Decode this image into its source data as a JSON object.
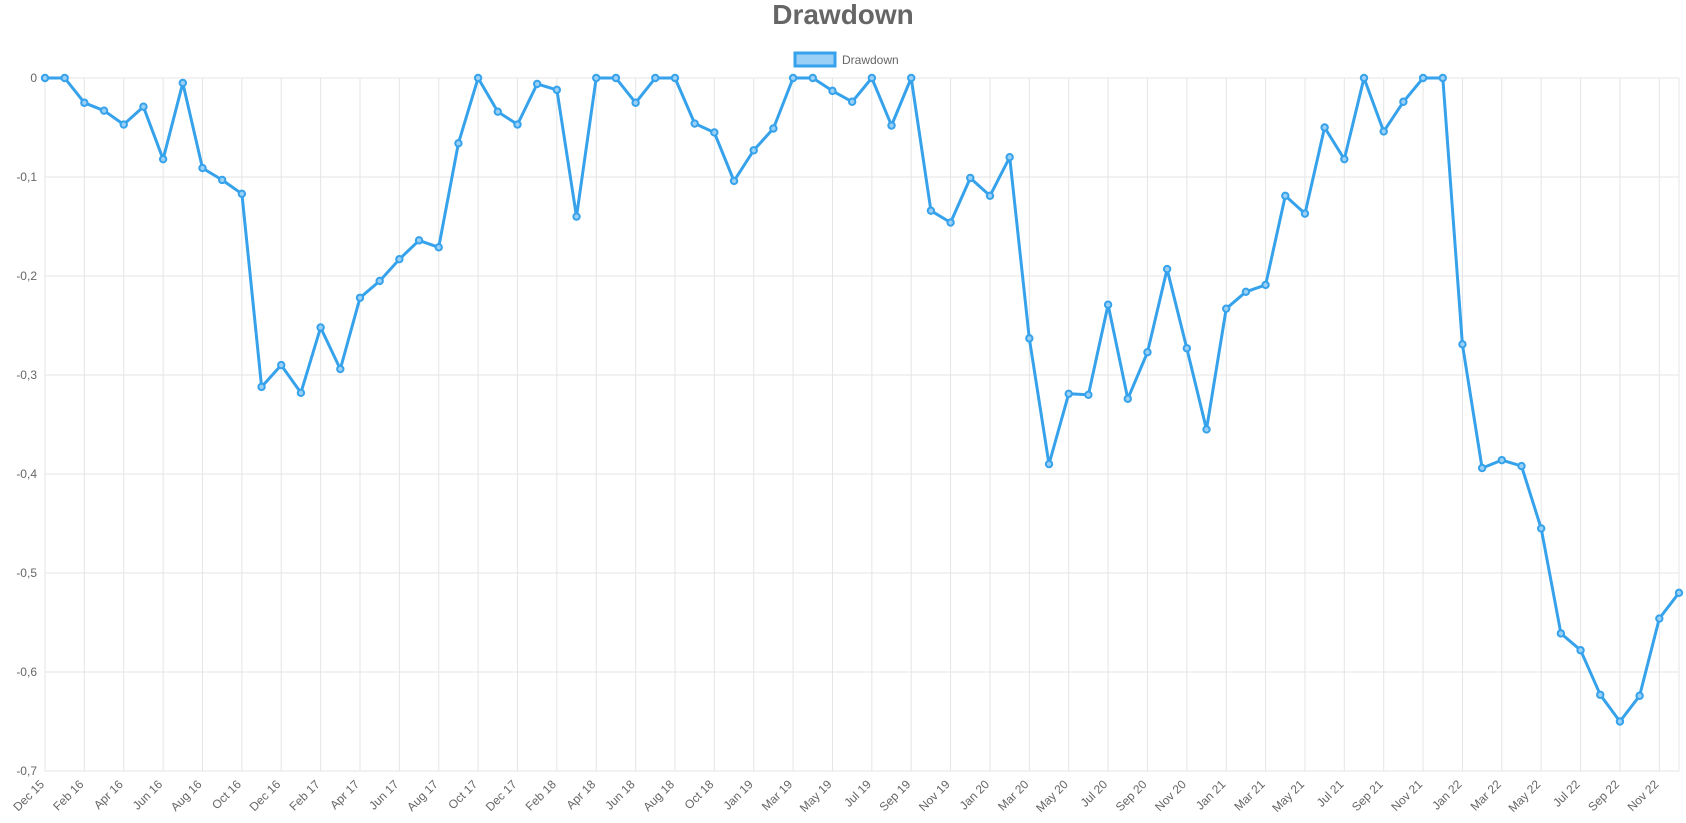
{
  "chart_data": {
    "type": "line",
    "title": "Drawdown",
    "legend": {
      "position": "top",
      "entries": [
        "Drawdown"
      ]
    },
    "colors": {
      "line": "#36a2eb",
      "fill": "#9ad0f5",
      "grid": "#e5e5e5",
      "text": "#666666"
    },
    "grid": true,
    "ylim": [
      -0.7,
      0
    ],
    "y_ticks": [
      "0",
      "-0,1",
      "-0,2",
      "-0,3",
      "-0,4",
      "-0,5",
      "-0,6",
      "-0,7"
    ],
    "x_tick_labels": [
      "Dec 15",
      "Feb 16",
      "Apr 16",
      "Jun 16",
      "Aug 16",
      "Oct 16",
      "Dec 16",
      "Feb 17",
      "Apr 17",
      "Jun 17",
      "Aug 17",
      "Oct 17",
      "Dec 17",
      "Feb 18",
      "Apr 18",
      "Jun 18",
      "Aug 18",
      "Oct 18",
      "Jan 19",
      "Mar 19",
      "May 19",
      "Jul 19",
      "Sep 19",
      "Nov 19",
      "Jan 20",
      "Mar 20",
      "May 20",
      "Jul 20",
      "Sep 20",
      "Nov 20",
      "Jan 21",
      "Mar 21",
      "May 21",
      "Jul 21",
      "Sep 21",
      "Nov 21",
      "Jan 22",
      "Mar 22",
      "May 22",
      "Jul 22",
      "Sep 22",
      "Nov 22"
    ],
    "series": [
      {
        "name": "Drawdown",
        "values": [
          0,
          0,
          -0.025,
          -0.033,
          -0.047,
          -0.029,
          -0.082,
          -0.005,
          -0.091,
          -0.103,
          -0.117,
          -0.312,
          -0.29,
          -0.318,
          -0.252,
          -0.294,
          -0.222,
          -0.205,
          -0.183,
          -0.164,
          -0.171,
          -0.066,
          0,
          -0.034,
          -0.047,
          -0.006,
          -0.012,
          -0.14,
          0,
          0,
          -0.025,
          0,
          0,
          -0.046,
          -0.055,
          -0.104,
          -0.073,
          -0.051,
          0,
          0,
          -0.013,
          -0.024,
          0,
          -0.048,
          0,
          -0.134,
          -0.146,
          -0.101,
          -0.119,
          -0.08,
          -0.263,
          -0.39,
          -0.319,
          -0.32,
          -0.229,
          -0.324,
          -0.277,
          -0.193,
          -0.273,
          -0.355,
          -0.233,
          -0.216,
          -0.209,
          -0.119,
          -0.137,
          -0.05,
          -0.082,
          0,
          -0.054,
          -0.024,
          0,
          0,
          -0.269,
          -0.394,
          -0.386,
          -0.392,
          -0.455,
          -0.561,
          -0.578,
          -0.623,
          -0.65,
          -0.624,
          -0.546,
          -0.52
        ]
      }
    ]
  }
}
